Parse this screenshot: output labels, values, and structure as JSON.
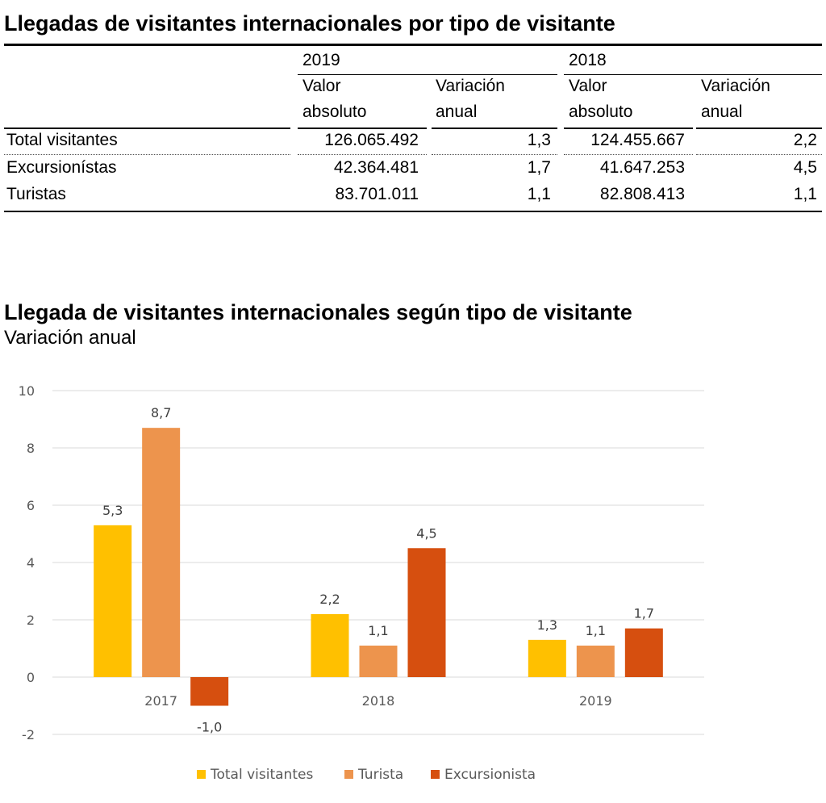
{
  "table_title": "Llegadas de visitantes internacionales por tipo de visitante",
  "table": {
    "years": [
      "2019",
      "2018"
    ],
    "col_headers": {
      "valor_l1": "Valor",
      "valor_l2": "absoluto",
      "var_l1": "Variación",
      "var_l2": "anual"
    },
    "rows": [
      {
        "label": "Total visitantes",
        "v2019": "126.065.492",
        "var2019": "1,3",
        "v2018": "124.455.667",
        "var2018": "2,2"
      },
      {
        "label": "Excursionístas",
        "v2019": "42.364.481",
        "var2019": "1,7",
        "v2018": "41.647.253",
        "var2018": "4,5"
      },
      {
        "label": "Turistas",
        "v2019": "83.701.011",
        "var2019": "1,1",
        "v2018": "82.808.413",
        "var2018": "1,1"
      }
    ]
  },
  "chart_title": "Llegada de visitantes internacionales según tipo de visitante",
  "chart_subtitle": "Variación anual",
  "chart_data": {
    "type": "bar",
    "categories": [
      "2017",
      "2018",
      "2019"
    ],
    "series": [
      {
        "name": "Total visitantes",
        "values": [
          5.3,
          2.2,
          1.3
        ],
        "labels": [
          "5,3",
          "2,2",
          "1,3"
        ],
        "color": "#FFC000"
      },
      {
        "name": "Turista",
        "values": [
          8.7,
          1.1,
          1.1
        ],
        "labels": [
          "8,7",
          "1,1",
          "1,1"
        ],
        "color": "#ED944D"
      },
      {
        "name": "Excursionista",
        "values": [
          -1.0,
          4.5,
          1.7
        ],
        "labels": [
          "-1,0",
          "4,5",
          "1,7"
        ],
        "color": "#D64F0F"
      }
    ],
    "ylim": [
      -2,
      10
    ],
    "yticks": [
      "-2",
      "0",
      "2",
      "4",
      "6",
      "8",
      "10"
    ],
    "ytick_values": [
      -2,
      0,
      2,
      4,
      6,
      8,
      10
    ],
    "grid": true,
    "legend_position": "bottom",
    "title": "Llegada de visitantes internacionales según tipo de visitante",
    "subtitle": "Variación anual",
    "xlabel": "",
    "ylabel": ""
  }
}
